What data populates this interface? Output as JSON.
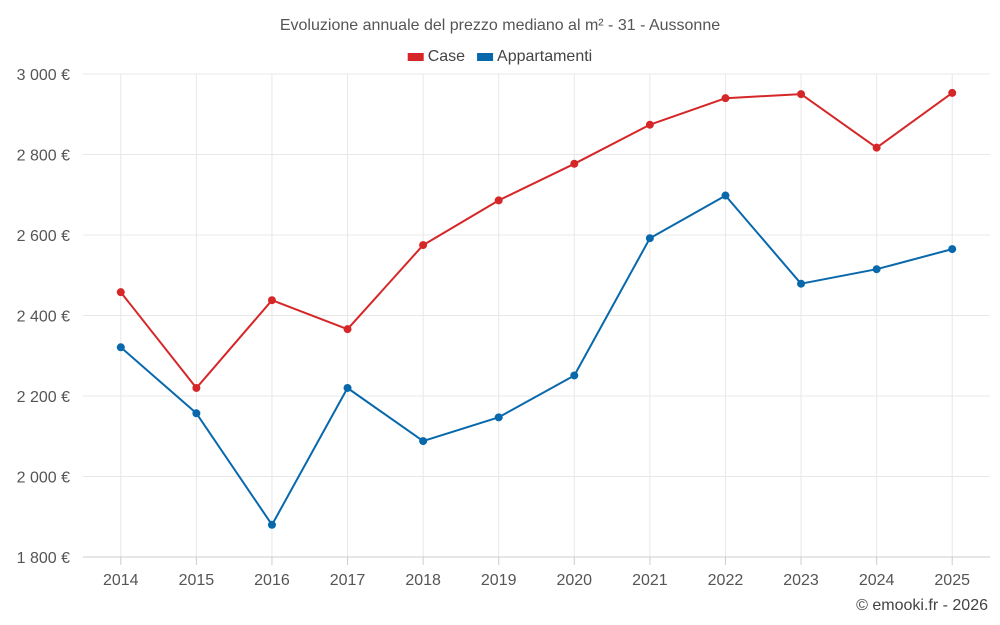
{
  "chart_data": {
    "type": "line",
    "title": "Evoluzione annuale del prezzo mediano al m² - 31 - Aussonne",
    "categories": [
      "2014",
      "2015",
      "2016",
      "2017",
      "2018",
      "2019",
      "2020",
      "2021",
      "2022",
      "2023",
      "2024",
      "2025"
    ],
    "series": [
      {
        "name": "Case",
        "color": "#d62728",
        "values": [
          2458,
          2220,
          2438,
          2366,
          2575,
          2686,
          2777,
          2874,
          2940,
          2950,
          2817,
          2953
        ]
      },
      {
        "name": "Appartamenti",
        "color": "#0868ac",
        "values": [
          2321,
          2157,
          1880,
          2220,
          2088,
          2147,
          2251,
          2592,
          2698,
          2479,
          2515,
          2565
        ]
      }
    ],
    "ylim": [
      1800,
      3000
    ],
    "yticks": [
      1800,
      2000,
      2200,
      2400,
      2600,
      2800,
      3000
    ],
    "ytick_labels": [
      "1 800 €",
      "2 000 €",
      "2 200 €",
      "2 400 €",
      "2 600 €",
      "2 800 €",
      "3 000 €"
    ],
    "xlabel": "",
    "ylabel": "",
    "grid": true,
    "legend_position": "top-center"
  },
  "credit": "© emooki.fr - 2026"
}
